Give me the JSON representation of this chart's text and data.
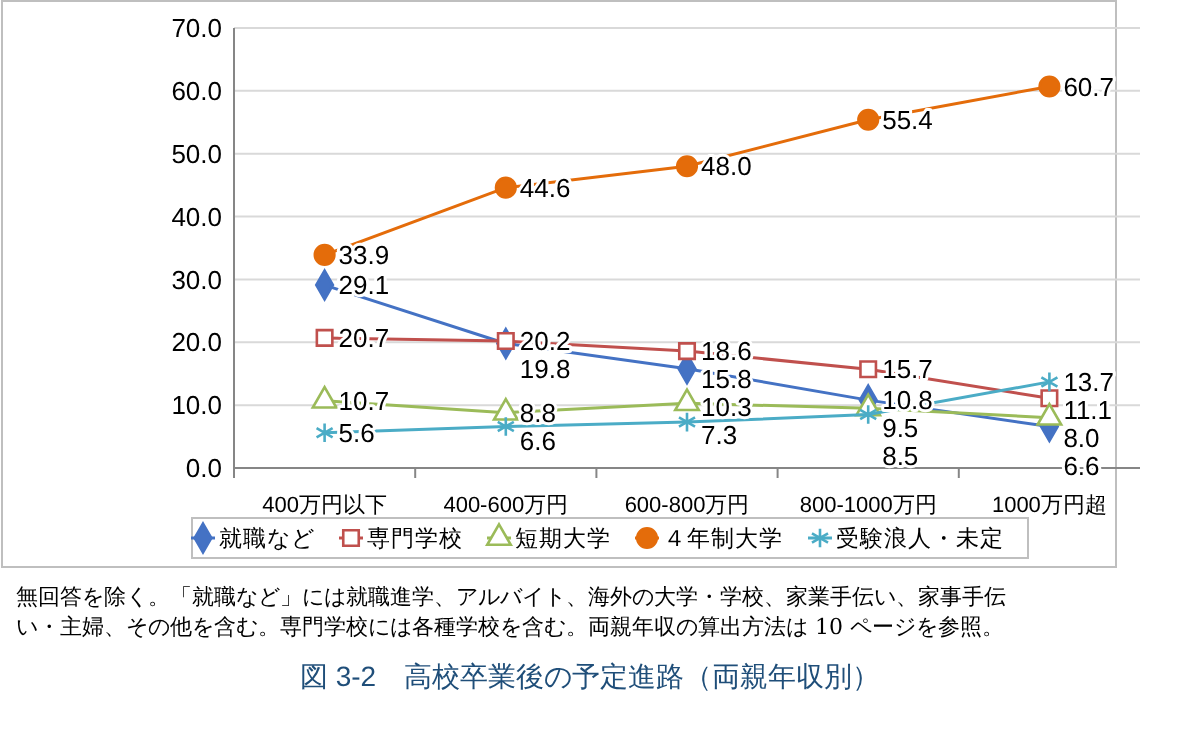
{
  "chart_data": {
    "type": "line",
    "title": "図 3-2　高校卒業後の予定進路（両親年収別）",
    "annotations": [
      "無回答を除く。「就職など」には就職進学、アルバイト、海外の大学・学校、家業手伝い、家事手伝",
      "い・主婦、その他を含む。専門学校には各種学校を含む。両親年収の算出方法は 10 ページを参照。"
    ],
    "categories": [
      "400万円以下",
      "400-600万円",
      "600-800万円",
      "800-1000万円",
      "1000万円超"
    ],
    "series": [
      {
        "name": "就職など",
        "color": "#4472c4",
        "marker": "diamond",
        "values": [
          29.1,
          19.8,
          15.8,
          10.8,
          6.6
        ],
        "value_labels": [
          "29.1",
          "19.8",
          "15.8",
          "10.8",
          "6.6"
        ]
      },
      {
        "name": "専門学校",
        "color": "#c0504d",
        "marker": "square",
        "values": [
          20.7,
          20.2,
          18.6,
          15.7,
          11.1
        ],
        "value_labels": [
          "20.7",
          "20.2",
          "18.6",
          "15.7",
          "11.1"
        ]
      },
      {
        "name": "短期大学",
        "color": "#9bbb59",
        "marker": "triangle",
        "values": [
          10.7,
          8.8,
          10.3,
          9.5,
          8.0
        ],
        "value_labels": [
          "10.7",
          "8.8",
          "10.3",
          "9.5",
          "8.0"
        ]
      },
      {
        "name": "４年制大学",
        "color": "#e46c0a",
        "marker": "circle",
        "values": [
          33.9,
          44.6,
          48.0,
          55.4,
          60.7
        ],
        "value_labels": [
          "33.9",
          "44.6",
          "48.0",
          "55.4",
          "60.7"
        ]
      },
      {
        "name": "受験浪人・未定",
        "color": "#4bacc6",
        "marker": "cross",
        "values": [
          5.6,
          6.6,
          7.3,
          8.5,
          13.7
        ],
        "value_labels": [
          "5.6",
          "6.6",
          "7.3",
          "8.5",
          "13.7"
        ]
      }
    ],
    "ylim": [
      0,
      70
    ],
    "yticks": [
      {
        "value": 0,
        "label": "0.0"
      },
      {
        "value": 10,
        "label": "10.0"
      },
      {
        "value": 20,
        "label": "20.0"
      },
      {
        "value": 30,
        "label": "30.0"
      },
      {
        "value": 40,
        "label": "40.0"
      },
      {
        "value": 50,
        "label": "50.0"
      },
      {
        "value": 60,
        "label": "60.0"
      },
      {
        "value": 70,
        "label": "70.0"
      }
    ],
    "grid": "y",
    "legend": "bottom"
  }
}
